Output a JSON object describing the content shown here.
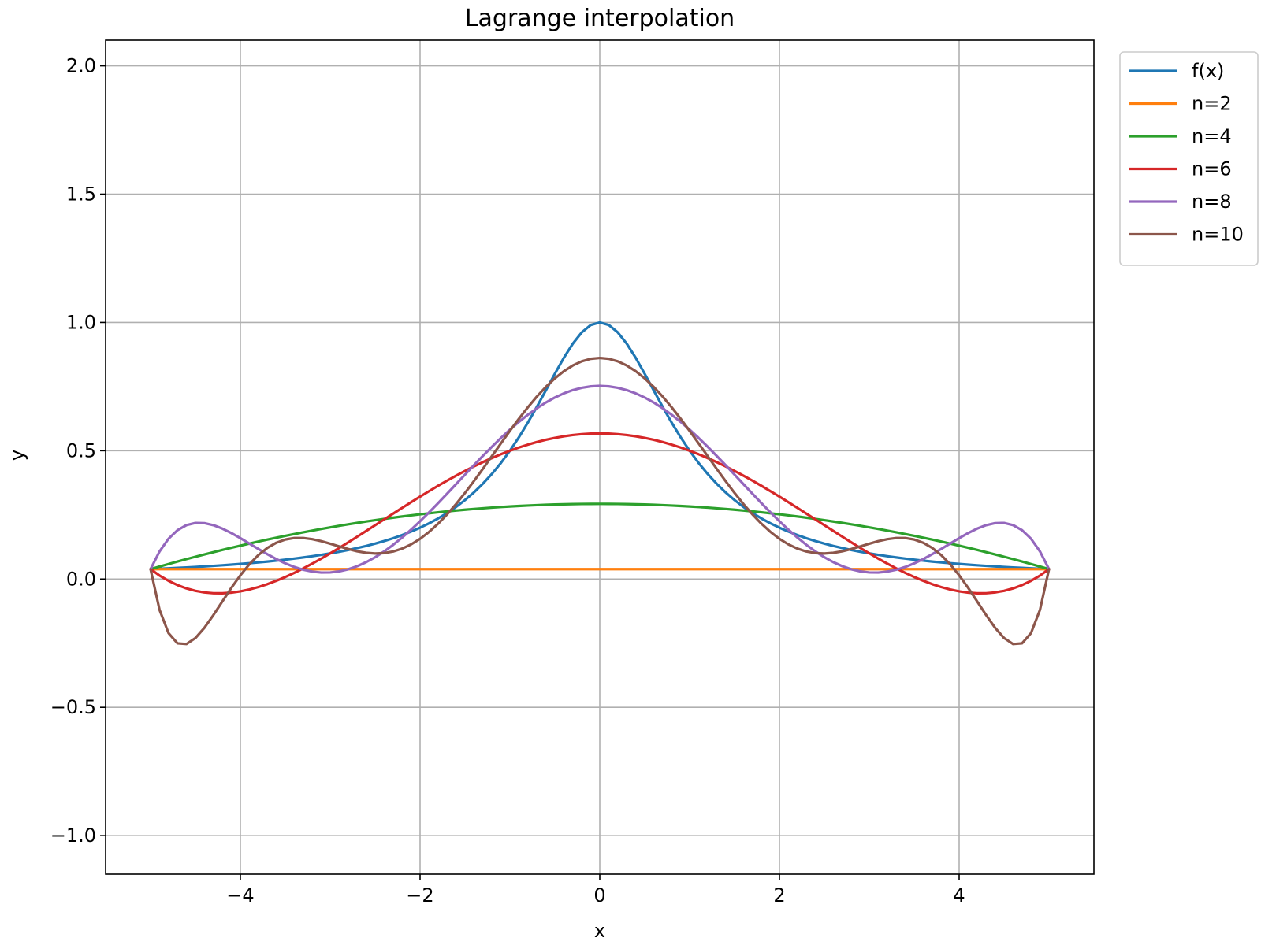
{
  "chart_data": {
    "type": "line",
    "title": "Lagrange interpolation",
    "xlabel": "x",
    "ylabel": "y",
    "xlim": [
      -5.5,
      5.5
    ],
    "ylim": [
      -1.15,
      2.1
    ],
    "xticks": [
      -4,
      -2,
      0,
      2,
      4
    ],
    "xtick_labels": [
      "−4",
      "−2",
      "0",
      "2",
      "4"
    ],
    "yticks": [
      -1.0,
      -0.5,
      0.0,
      0.5,
      1.0,
      1.5,
      2.0
    ],
    "ytick_labels": [
      "−1.0",
      "−0.5",
      "0.0",
      "0.5",
      "1.0",
      "1.5",
      "2.0"
    ],
    "grid": true,
    "legend_position": "outside-top-right",
    "function": "1/(1+x^2)",
    "x_range": [
      -5,
      5
    ],
    "sample_count": 101,
    "series": [
      {
        "name": "f(x)",
        "color": "#1f77b4",
        "kind": "function"
      },
      {
        "name": "n=2",
        "color": "#ff7f0e",
        "kind": "interpolant",
        "nodes": 2
      },
      {
        "name": "n=4",
        "color": "#2ca02c",
        "kind": "interpolant",
        "nodes": 4
      },
      {
        "name": "n=6",
        "color": "#d62728",
        "kind": "interpolant",
        "nodes": 6
      },
      {
        "name": "n=8",
        "color": "#9467bd",
        "kind": "interpolant",
        "nodes": 8
      },
      {
        "name": "n=10",
        "color": "#8c564b",
        "kind": "interpolant",
        "nodes": 10
      }
    ]
  }
}
